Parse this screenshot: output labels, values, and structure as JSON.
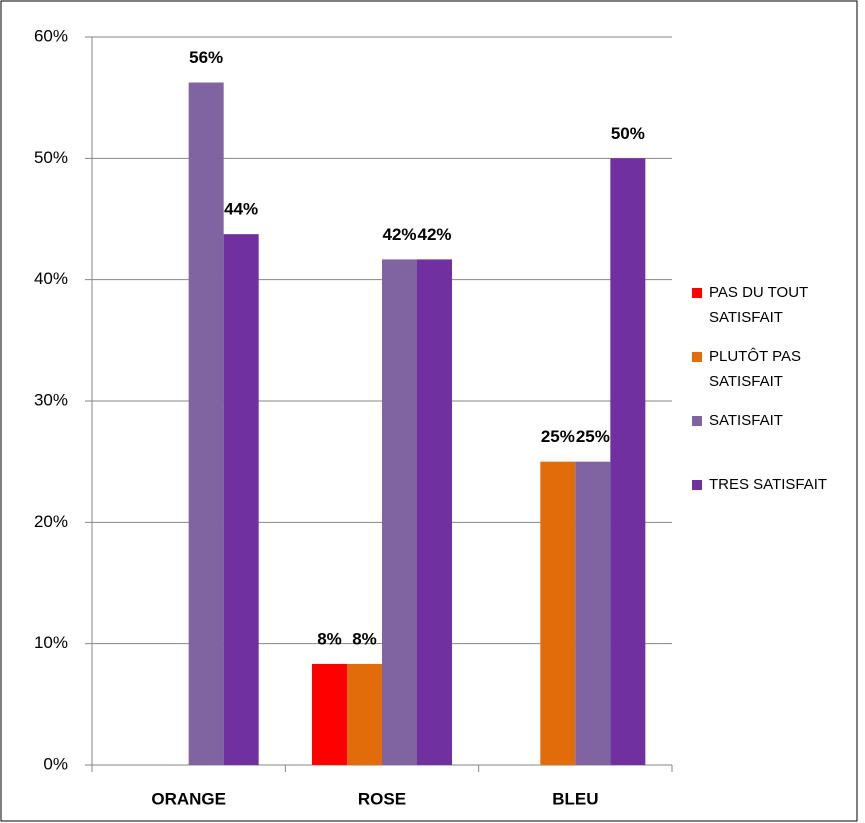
{
  "chart_data": {
    "type": "bar",
    "categories": [
      "ORANGE",
      "ROSE",
      "BLEU"
    ],
    "series": [
      {
        "name": "PAS DU TOUT SATISFAIT",
        "color": "#ff0000",
        "values": [
          null,
          8.33,
          null
        ],
        "value_labels": [
          null,
          "8%",
          null
        ]
      },
      {
        "name": "PLUTÔT PAS SATISFAIT",
        "color": "#e36c0a",
        "values": [
          null,
          8.33,
          25
        ],
        "value_labels": [
          null,
          "8%",
          "25%"
        ]
      },
      {
        "name": "SATISFAIT",
        "color": "#8064a2",
        "values": [
          56.25,
          41.67,
          25
        ],
        "value_labels": [
          "56%",
          "42%",
          "25%"
        ]
      },
      {
        "name": "TRES SATISFAIT",
        "color": "#7030a0",
        "values": [
          43.75,
          41.67,
          50
        ],
        "value_labels": [
          "44%",
          "42%",
          "50%"
        ]
      }
    ],
    "ylim": [
      0,
      60
    ],
    "yticks": [
      {
        "value": 0,
        "label": "0%"
      },
      {
        "value": 10,
        "label": "10%"
      },
      {
        "value": 20,
        "label": "20%"
      },
      {
        "value": 30,
        "label": "30%"
      },
      {
        "value": 40,
        "label": "40%"
      },
      {
        "value": 50,
        "label": "50%"
      },
      {
        "value": 60,
        "label": "60%"
      }
    ],
    "grid": true,
    "legend": "right"
  }
}
